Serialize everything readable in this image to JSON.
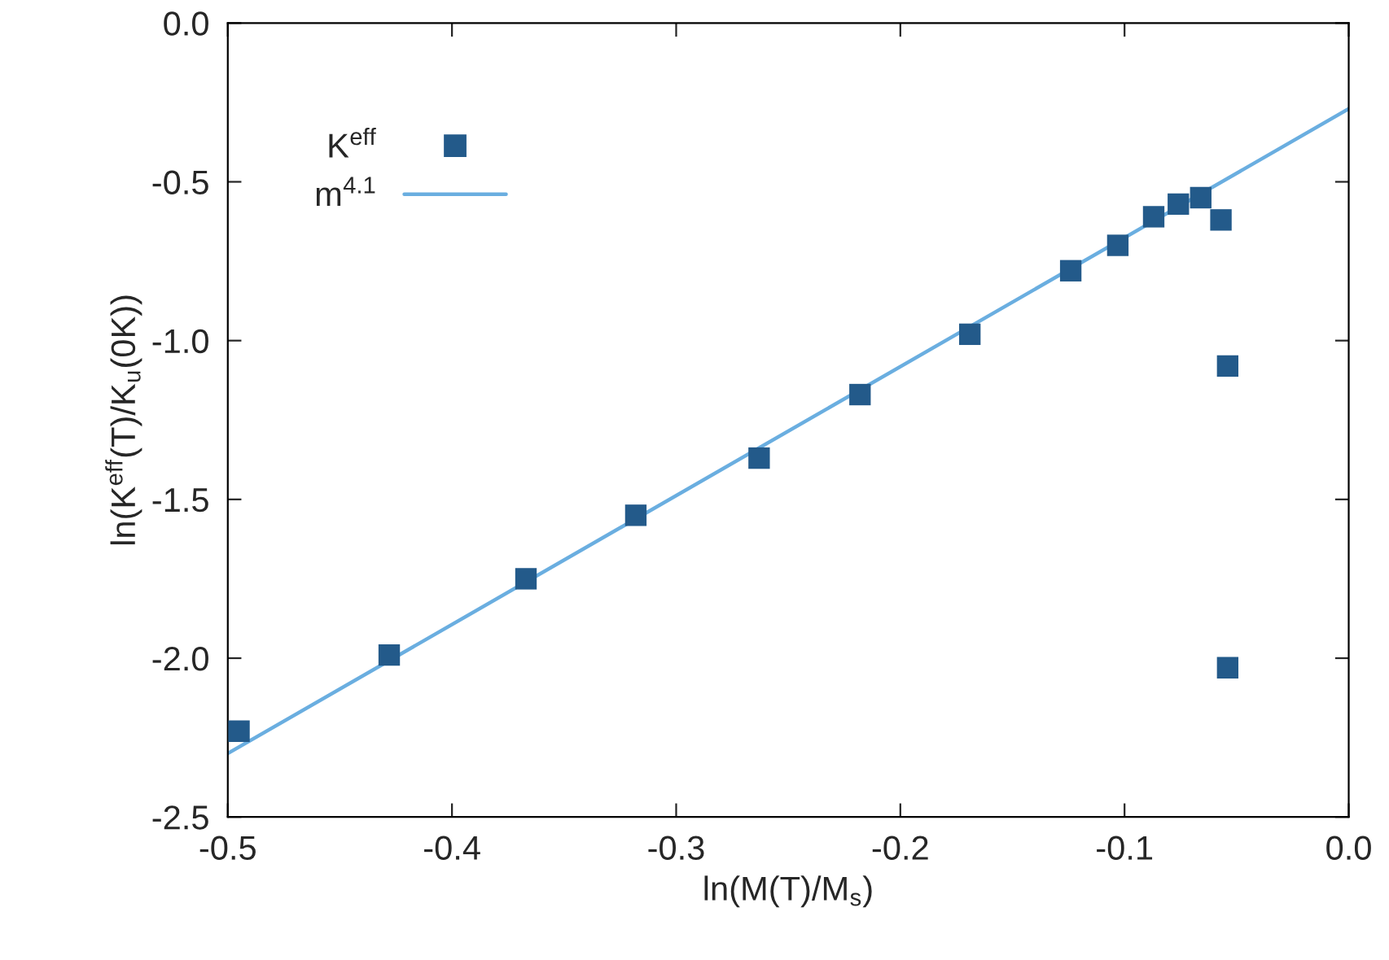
{
  "chart_data": {
    "type": "scatter",
    "xlabel": "ln(M(T)/M$_{s}$)",
    "ylabel": "ln(K$^{eff}$(T)/K$_{u}$(0K))",
    "xlim": [
      -0.5,
      0.0
    ],
    "xticks": [
      {
        "value": -0.5,
        "label": "-0.5"
      },
      {
        "value": -0.4,
        "label": "-0.4"
      },
      {
        "value": -0.3,
        "label": "-0.3"
      },
      {
        "value": -0.2,
        "label": "-0.2"
      },
      {
        "value": -0.1,
        "label": "-0.1"
      },
      {
        "value": 0.0,
        "label": "0.0"
      }
    ],
    "ylim": [
      -2.5,
      0.0
    ],
    "yticks": [
      {
        "value": -2.5,
        "label": "-2.5"
      },
      {
        "value": -2.0,
        "label": "-2.0"
      },
      {
        "value": -1.5,
        "label": "-1.5"
      },
      {
        "value": -1.0,
        "label": "-1.0"
      },
      {
        "value": -0.5,
        "label": "-0.5"
      },
      {
        "value": 0.0,
        "label": "0.0"
      }
    ],
    "grid": false,
    "legend": "top left",
    "series": [
      {
        "name": "K$^{eff}$",
        "marker": "square",
        "color": "#235a8a",
        "x": [
          -0.495,
          -0.428,
          -0.367,
          -0.318,
          -0.263,
          -0.218,
          -0.169,
          -0.124,
          -0.103,
          -0.087,
          -0.076,
          -0.066,
          -0.057,
          -0.054,
          -0.054
        ],
        "values": [
          -2.23,
          -1.99,
          -1.75,
          -1.55,
          -1.37,
          -1.17,
          -0.98,
          -0.78,
          -0.7,
          -0.61,
          -0.57,
          -0.55,
          -0.62,
          -1.08,
          -2.03
        ]
      },
      {
        "name": "m$^{4.1}$",
        "type": "line",
        "line_style": "solid",
        "color": "#6aaee0",
        "x": [
          -0.5,
          0.0
        ],
        "values": [
          -2.3,
          -0.27
        ]
      }
    ]
  }
}
